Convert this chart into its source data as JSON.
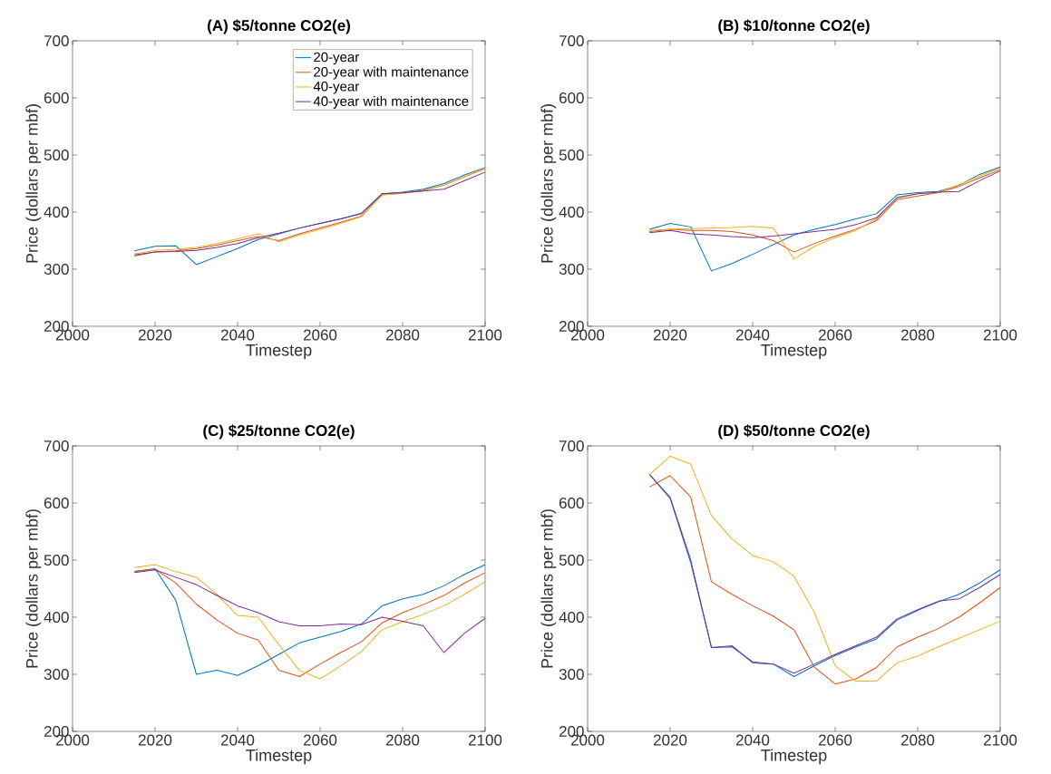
{
  "chart_data": [
    {
      "type": "line",
      "title": "(A) $5/tonne CO2(e)",
      "xlabel": "Timestep",
      "ylabel": "Price (dollars per mbf)",
      "x": [
        2015,
        2020,
        2025,
        2030,
        2035,
        2040,
        2045,
        2050,
        2055,
        2060,
        2065,
        2070,
        2075,
        2080,
        2085,
        2090,
        2095,
        2100
      ],
      "xlim": [
        2000,
        2100
      ],
      "xticks": [
        2000,
        2020,
        2040,
        2060,
        2080,
        2100
      ],
      "ylim": [
        200,
        700
      ],
      "yticks": [
        200,
        300,
        400,
        500,
        600,
        700
      ],
      "legend": "top right",
      "series": [
        {
          "name": "20-year",
          "color": "#0072bd",
          "values": [
            332,
            340,
            341,
            308,
            322,
            336,
            352,
            362,
            372,
            380,
            388,
            398,
            432,
            435,
            440,
            450,
            465,
            478
          ]
        },
        {
          "name": "20-year with maintenance",
          "color": "#d95319",
          "values": [
            323,
            330,
            332,
            336,
            342,
            350,
            357,
            350,
            362,
            372,
            382,
            393,
            430,
            433,
            438,
            447,
            462,
            476
          ]
        },
        {
          "name": "40-year",
          "color": "#edb120",
          "values": [
            327,
            333,
            335,
            338,
            345,
            353,
            362,
            348,
            360,
            370,
            380,
            392,
            430,
            433,
            437,
            447,
            462,
            477
          ]
        },
        {
          "name": "40-year with maintenance",
          "color": "#7e2f8e",
          "values": [
            325,
            330,
            331,
            333,
            338,
            345,
            355,
            363,
            372,
            380,
            388,
            397,
            432,
            434,
            437,
            440,
            455,
            470
          ]
        }
      ]
    },
    {
      "type": "line",
      "title": "(B) $10/tonne CO2(e)",
      "xlabel": "Timestep",
      "ylabel": "Price (dollars per mbf)",
      "x": [
        2015,
        2020,
        2025,
        2030,
        2035,
        2040,
        2045,
        2050,
        2055,
        2060,
        2065,
        2070,
        2075,
        2080,
        2085,
        2090,
        2095,
        2100
      ],
      "xlim": [
        2000,
        2100
      ],
      "xticks": [
        2000,
        2020,
        2040,
        2060,
        2080,
        2100
      ],
      "ylim": [
        200,
        700
      ],
      "yticks": [
        200,
        300,
        400,
        500,
        600,
        700
      ],
      "series": [
        {
          "color": "#0072bd",
          "values": [
            370,
            380,
            374,
            297,
            310,
            326,
            343,
            360,
            370,
            378,
            388,
            397,
            430,
            434,
            436,
            447,
            466,
            479
          ]
        },
        {
          "color": "#d95319",
          "values": [
            366,
            370,
            368,
            368,
            366,
            360,
            350,
            330,
            345,
            358,
            370,
            385,
            422,
            428,
            434,
            445,
            460,
            474
          ]
        },
        {
          "color": "#edb120",
          "values": [
            368,
            370,
            371,
            372,
            373,
            375,
            372,
            318,
            340,
            355,
            368,
            388,
            426,
            432,
            434,
            448,
            463,
            477
          ]
        },
        {
          "color": "#7e2f8e",
          "values": [
            364,
            368,
            362,
            360,
            357,
            355,
            358,
            362,
            366,
            370,
            378,
            390,
            425,
            432,
            435,
            436,
            455,
            472
          ]
        }
      ]
    },
    {
      "type": "line",
      "title": "(C) $25/tonne CO2(e)",
      "xlabel": "Timestep",
      "ylabel": "Price (dollars per mbf)",
      "x": [
        2015,
        2020,
        2025,
        2030,
        2035,
        2040,
        2045,
        2050,
        2055,
        2060,
        2065,
        2070,
        2075,
        2080,
        2085,
        2090,
        2095,
        2100
      ],
      "xlim": [
        2000,
        2100
      ],
      "xticks": [
        2000,
        2020,
        2040,
        2060,
        2080,
        2100
      ],
      "ylim": [
        200,
        700
      ],
      "yticks": [
        200,
        300,
        400,
        500,
        600,
        700
      ],
      "series": [
        {
          "color": "#0072bd",
          "values": [
            480,
            485,
            430,
            300,
            307,
            298,
            315,
            335,
            355,
            365,
            375,
            388,
            420,
            432,
            440,
            455,
            475,
            492
          ]
        },
        {
          "color": "#d95319",
          "values": [
            480,
            484,
            460,
            423,
            395,
            372,
            360,
            307,
            296,
            318,
            338,
            357,
            390,
            408,
            422,
            438,
            460,
            478
          ]
        },
        {
          "color": "#edb120",
          "values": [
            487,
            492,
            480,
            470,
            440,
            403,
            400,
            352,
            307,
            292,
            315,
            340,
            378,
            392,
            405,
            420,
            440,
            462
          ]
        },
        {
          "color": "#7e2f8e",
          "values": [
            478,
            483,
            470,
            457,
            438,
            420,
            408,
            392,
            385,
            385,
            388,
            387,
            400,
            393,
            385,
            338,
            372,
            398
          ]
        }
      ]
    },
    {
      "type": "line",
      "title": "(D) $50/tonne CO2(e)",
      "xlabel": "Timestep",
      "ylabel": "Price (dollars per mbf)",
      "x": [
        2015,
        2020,
        2025,
        2030,
        2035,
        2040,
        2045,
        2050,
        2055,
        2060,
        2065,
        2070,
        2075,
        2080,
        2085,
        2090,
        2095,
        2100
      ],
      "xlim": [
        2000,
        2100
      ],
      "xticks": [
        2000,
        2020,
        2040,
        2060,
        2080,
        2100
      ],
      "ylim": [
        200,
        700
      ],
      "yticks": [
        200,
        300,
        400,
        500,
        600,
        700
      ],
      "series": [
        {
          "color": "#0072bd",
          "values": [
            650,
            610,
            500,
            347,
            350,
            320,
            318,
            296,
            315,
            333,
            348,
            362,
            395,
            412,
            427,
            440,
            460,
            483
          ]
        },
        {
          "color": "#d95319",
          "values": [
            628,
            648,
            610,
            462,
            440,
            420,
            402,
            378,
            312,
            283,
            292,
            312,
            348,
            365,
            380,
            400,
            425,
            452
          ]
        },
        {
          "color": "#edb120",
          "values": [
            650,
            682,
            668,
            578,
            537,
            508,
            497,
            472,
            408,
            315,
            288,
            288,
            320,
            332,
            348,
            363,
            378,
            393
          ]
        },
        {
          "color": "#7e2f8e",
          "values": [
            650,
            608,
            495,
            347,
            348,
            322,
            318,
            302,
            318,
            335,
            350,
            365,
            397,
            413,
            428,
            432,
            452,
            475
          ]
        }
      ]
    }
  ]
}
